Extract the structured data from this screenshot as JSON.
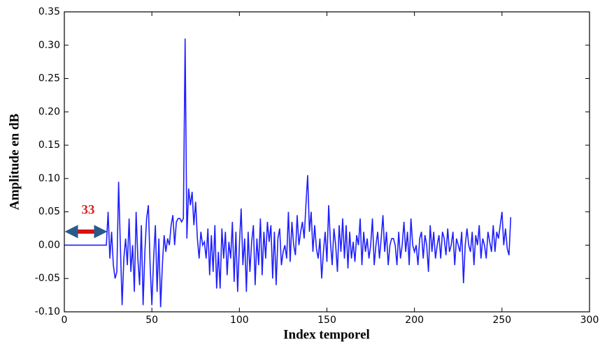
{
  "chart_data": {
    "type": "line",
    "xlabel": "Index temporel",
    "ylabel": "Amplitude en dB",
    "annotation": "33",
    "xlim": [
      0,
      300
    ],
    "xticks": [
      0,
      50,
      100,
      150,
      200,
      250,
      300
    ],
    "ylim": [
      -0.1,
      0.35
    ],
    "yticks": [
      {
        "value": -0.1,
        "label": "-0.10"
      },
      {
        "value": -0.05,
        "label": "-0.05"
      },
      {
        "value": 0,
        "label": "0.00"
      },
      {
        "value": 0.05,
        "label": "0.05"
      },
      {
        "value": 0.1,
        "label": "0.10"
      },
      {
        "value": 0.15,
        "label": "0.15"
      },
      {
        "value": 0.2,
        "label": "0.20"
      },
      {
        "value": 0.25,
        "label": "0.25"
      },
      {
        "value": 0.3,
        "label": "0.30"
      },
      {
        "value": 0.35,
        "label": "0.35"
      }
    ],
    "x": [
      0,
      1,
      2,
      3,
      4,
      5,
      6,
      7,
      8,
      9,
      10,
      11,
      12,
      13,
      14,
      15,
      16,
      17,
      18,
      19,
      20,
      21,
      22,
      23,
      24,
      25,
      26,
      27,
      28,
      29,
      30,
      31,
      32,
      33,
      34,
      35,
      36,
      37,
      38,
      39,
      40,
      41,
      42,
      43,
      44,
      45,
      46,
      47,
      48,
      49,
      50,
      51,
      52,
      53,
      54,
      55,
      56,
      57,
      58,
      59,
      60,
      61,
      62,
      63,
      64,
      65,
      66,
      67,
      68,
      69,
      70,
      71,
      72,
      73,
      74,
      75,
      76,
      77,
      78,
      79,
      80,
      81,
      82,
      83,
      84,
      85,
      86,
      87,
      88,
      89,
      90,
      91,
      92,
      93,
      94,
      95,
      96,
      97,
      98,
      99,
      100,
      101,
      102,
      103,
      104,
      105,
      106,
      107,
      108,
      109,
      110,
      111,
      112,
      113,
      114,
      115,
      116,
      117,
      118,
      119,
      120,
      121,
      122,
      123,
      124,
      125,
      126,
      127,
      128,
      129,
      130,
      131,
      132,
      133,
      134,
      135,
      136,
      137,
      138,
      139,
      140,
      141,
      142,
      143,
      144,
      145,
      146,
      147,
      148,
      149,
      150,
      151,
      152,
      153,
      154,
      155,
      156,
      157,
      158,
      159,
      160,
      161,
      162,
      163,
      164,
      165,
      166,
      167,
      168,
      169,
      170,
      171,
      172,
      173,
      174,
      175,
      176,
      177,
      178,
      179,
      180,
      181,
      182,
      183,
      184,
      185,
      186,
      187,
      188,
      189,
      190,
      191,
      192,
      193,
      194,
      195,
      196,
      197,
      198,
      199,
      200,
      201,
      202,
      203,
      204,
      205,
      206,
      207,
      208,
      209,
      210,
      211,
      212,
      213,
      214,
      215,
      216,
      217,
      218,
      219,
      220,
      221,
      222,
      223,
      224,
      225,
      226,
      227,
      228,
      229,
      230,
      231,
      232,
      233,
      234,
      235,
      236,
      237,
      238,
      239,
      240,
      241,
      242,
      243,
      244,
      245,
      246,
      247,
      248,
      249,
      250,
      251,
      252,
      253,
      254,
      255
    ],
    "series": [
      {
        "color": "#1f1fff",
        "values": [
          0,
          0,
          0,
          0,
          0,
          0,
          0,
          0,
          0,
          0,
          0,
          0,
          0,
          0,
          0,
          0,
          0,
          0,
          0,
          0,
          0,
          0,
          0,
          0,
          0,
          0.05,
          -0.02,
          0.02,
          -0.03,
          -0.05,
          -0.04,
          0.095,
          0.0,
          -0.09,
          -0.02,
          0.01,
          -0.03,
          0.04,
          -0.04,
          0.0,
          -0.07,
          0.05,
          -0.02,
          -0.06,
          0.03,
          -0.09,
          -0.01,
          0.04,
          0.06,
          -0.03,
          -0.09,
          -0.02,
          0.03,
          -0.07,
          0.01,
          -0.093,
          -0.03,
          0.015,
          -0.01,
          0.01,
          0.0,
          0.03,
          0.045,
          0.0,
          0.035,
          0.04,
          0.04,
          0.035,
          0.04,
          0.31,
          0.01,
          0.085,
          0.06,
          0.08,
          0.03,
          0.065,
          0.01,
          -0.02,
          0.02,
          0.0,
          0.005,
          -0.02,
          0.025,
          -0.045,
          0.015,
          -0.04,
          0.03,
          -0.065,
          -0.01,
          -0.065,
          0.025,
          -0.02,
          0.02,
          -0.045,
          0.005,
          -0.02,
          0.035,
          -0.055,
          0.02,
          -0.07,
          0.0,
          0.055,
          -0.03,
          0.01,
          -0.07,
          0.02,
          -0.04,
          0.005,
          0.03,
          -0.06,
          0.01,
          -0.03,
          0.04,
          -0.045,
          0.02,
          -0.02,
          0.035,
          0.005,
          0.03,
          -0.05,
          0.02,
          -0.06,
          0.01,
          0.025,
          -0.03,
          -0.01,
          0.0,
          -0.02,
          0.05,
          -0.025,
          0.035,
          0.0,
          -0.015,
          0.045,
          0.0,
          0.02,
          0.035,
          0.01,
          0.06,
          0.105,
          0.02,
          0.05,
          -0.01,
          0.03,
          -0.005,
          -0.02,
          0.01,
          -0.05,
          -0.01,
          0.02,
          -0.025,
          0.06,
          0.005,
          -0.03,
          0.025,
          0.0,
          -0.04,
          0.03,
          -0.01,
          0.04,
          -0.02,
          0.03,
          -0.035,
          0.02,
          -0.02,
          0.005,
          -0.025,
          0.015,
          0.0,
          0.04,
          -0.03,
          0.02,
          -0.01,
          0.01,
          -0.02,
          0.0,
          0.04,
          -0.03,
          0.0,
          0.02,
          -0.02,
          0.01,
          0.045,
          -0.01,
          0.02,
          -0.03,
          0.0,
          0.01,
          0.01,
          0.0,
          -0.03,
          0.02,
          -0.02,
          0.0,
          0.035,
          -0.01,
          0.02,
          -0.03,
          0.04,
          0.0,
          -0.01,
          0.0,
          -0.03,
          0.01,
          0.02,
          -0.02,
          0.015,
          0.0,
          -0.04,
          0.03,
          -0.01,
          0.02,
          -0.02,
          0.0,
          0.015,
          -0.02,
          0.02,
          0.01,
          -0.015,
          0.025,
          -0.01,
          0.0,
          0.02,
          -0.03,
          0.01,
          0.0,
          -0.01,
          0.02,
          -0.057,
          0.0,
          0.025,
          0.0,
          -0.01,
          0.02,
          -0.03,
          0.015,
          0.0,
          0.03,
          -0.02,
          0.01,
          0.0,
          -0.02,
          0.02,
          0.005,
          -0.01,
          0.03,
          -0.01,
          0.02,
          0.01,
          0.03,
          0.05,
          0.0,
          0.025,
          -0.005,
          -0.015,
          0.042
        ]
      }
    ]
  }
}
